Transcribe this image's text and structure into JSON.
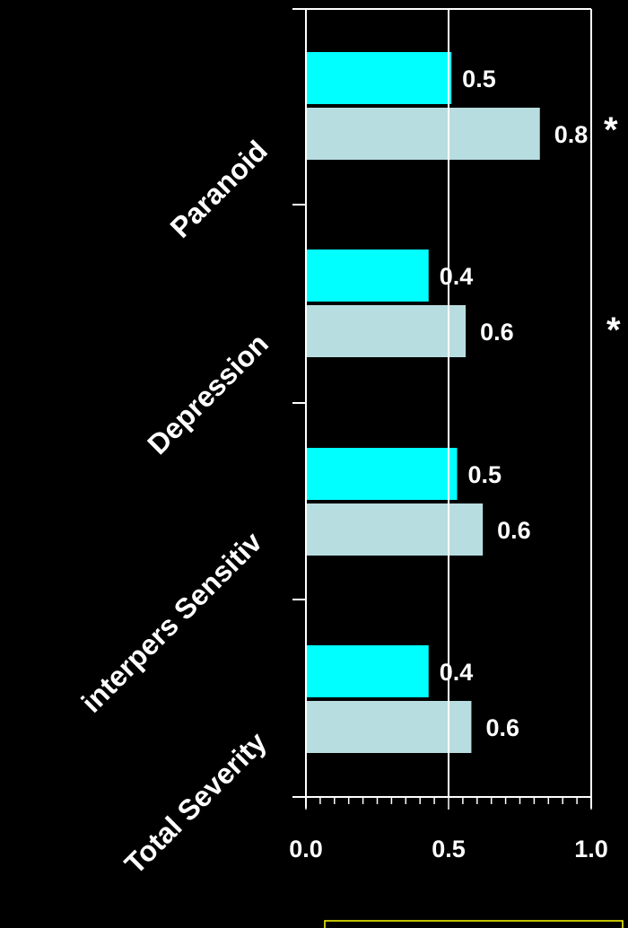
{
  "chart_data": {
    "type": "bar",
    "orientation": "horizontal",
    "categories": [
      "Paranoid",
      "Depression",
      "interpers Sensitiv",
      "Total Severity"
    ],
    "series": [
      {
        "values": [
          0.5,
          0.4,
          0.5,
          0.4
        ],
        "displayed_values": [
          0.51,
          0.43,
          0.53,
          0.43
        ],
        "color": "#00ffff"
      },
      {
        "values": [
          0.8,
          0.6,
          0.6,
          0.6
        ],
        "displayed_values": [
          0.82,
          0.56,
          0.62,
          0.58
        ],
        "color": "#b8dde0"
      }
    ],
    "xlim": [
      0.0,
      1.0
    ],
    "xticks": [
      "0.0",
      "0.5",
      "1.0"
    ],
    "significance_marks": [
      "*",
      "*"
    ],
    "title": "",
    "xlabel": "",
    "ylabel": "",
    "grid": "vertical line at 0.5",
    "colors": {
      "background": "#000000",
      "axis": "#ffffff",
      "caption_border": "#ffff00"
    }
  }
}
